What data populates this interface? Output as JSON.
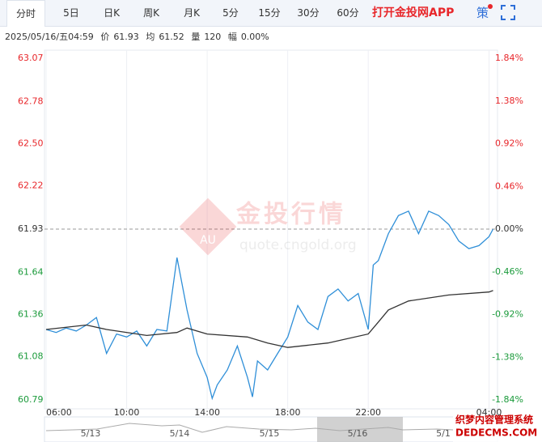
{
  "tabs": [
    "分时",
    "5日",
    "日K",
    "周K",
    "月K",
    "5分",
    "15分",
    "30分",
    "60分"
  ],
  "app_button": "打开金投网APP",
  "strategy": "策",
  "info": {
    "datetime": "2025/05/16/五04:59",
    "price_label": "价",
    "price": "61.93",
    "avg_label": "均",
    "avg": "61.52",
    "volume_label": "量",
    "volume": "120",
    "range_label": "幅",
    "range": "0.00%"
  },
  "watermark": {
    "title": "金投行情",
    "url": "quote.cngold.org",
    "logo": "AU"
  },
  "overlay": {
    "line1": "织梦内容管理系统",
    "line2": "DEDECMS.COM"
  },
  "navigator": {
    "dates": [
      "5/13",
      "5/14",
      "5/15",
      "5/16",
      "5/1"
    ]
  },
  "chart_data": {
    "type": "line",
    "up_color": "#e8262a",
    "down_color": "#1a9a3a",
    "xlim": [
      6,
      28.3
    ],
    "xticks": [
      {
        "value": 6,
        "label": "06:00"
      },
      {
        "value": 10,
        "label": "10:00"
      },
      {
        "value": 14,
        "label": "14:00"
      },
      {
        "value": 18,
        "label": "18:00"
      },
      {
        "value": 22,
        "label": "22:00"
      },
      {
        "value": 28,
        "label": "04:00"
      }
    ],
    "ylim": [
      60.79,
      63.07
    ],
    "yticks": [
      63.07,
      62.78,
      {
        "value": 62.5,
        "label": "62.50"
      },
      62.22,
      61.93,
      61.64,
      61.36,
      61.08,
      60.79
    ],
    "y2lim": [
      -1.84,
      1.84
    ],
    "y2ticks": [
      {
        "value": 1.84,
        "label": "1.84%"
      },
      {
        "value": 1.38,
        "label": "1.38%"
      },
      {
        "value": 0.92,
        "label": "0.92%"
      },
      {
        "value": 0.46,
        "label": "0.46%"
      },
      {
        "value": 0,
        "label": "0.00%"
      },
      {
        "value": -0.46,
        "label": "-0.46%"
      },
      {
        "value": -0.92,
        "label": "-0.92%"
      },
      {
        "value": -1.38,
        "label": "-1.38%"
      },
      {
        "value": -1.84,
        "label": "-1.84%"
      }
    ],
    "series": [
      {
        "color": "#2f8fd8",
        "x": [
          6,
          6.5,
          7,
          7.5,
          8,
          8.5,
          9,
          9.5,
          10,
          10.5,
          11,
          11.5,
          12,
          12.5,
          13,
          13.5,
          14,
          14.25,
          14.5,
          15,
          15.5,
          16,
          16.25,
          16.5,
          17,
          17.5,
          18,
          18.5,
          19,
          19.5,
          20,
          20.5,
          21,
          21.5,
          22,
          22.25,
          22.5,
          23,
          23.5,
          24,
          24.5,
          25,
          25.5,
          26,
          26.5,
          27,
          27.5,
          28,
          28.2
        ],
        "values": [
          61.26,
          61.24,
          61.27,
          61.25,
          61.29,
          61.34,
          61.1,
          61.23,
          61.21,
          61.25,
          61.15,
          61.26,
          61.25,
          61.74,
          61.39,
          61.1,
          60.94,
          60.8,
          60.89,
          60.99,
          61.15,
          60.94,
          60.81,
          61.05,
          60.99,
          61.1,
          61.21,
          61.42,
          61.31,
          61.26,
          61.48,
          61.53,
          61.45,
          61.5,
          61.26,
          61.69,
          61.72,
          61.9,
          62.02,
          62.05,
          61.9,
          62.05,
          62.02,
          61.96,
          61.85,
          61.8,
          61.82,
          61.88,
          61.93
        ]
      },
      {
        "color": "#333333",
        "x": [
          6,
          8,
          9,
          11,
          12.5,
          13,
          14,
          16,
          17,
          18,
          20,
          22,
          22.5,
          23,
          24,
          26,
          28,
          28.2
        ],
        "values": [
          61.26,
          61.29,
          61.26,
          61.22,
          61.24,
          61.27,
          61.23,
          61.21,
          61.17,
          61.14,
          61.17,
          61.23,
          61.31,
          61.39,
          61.45,
          61.49,
          61.51,
          61.52
        ]
      }
    ]
  }
}
